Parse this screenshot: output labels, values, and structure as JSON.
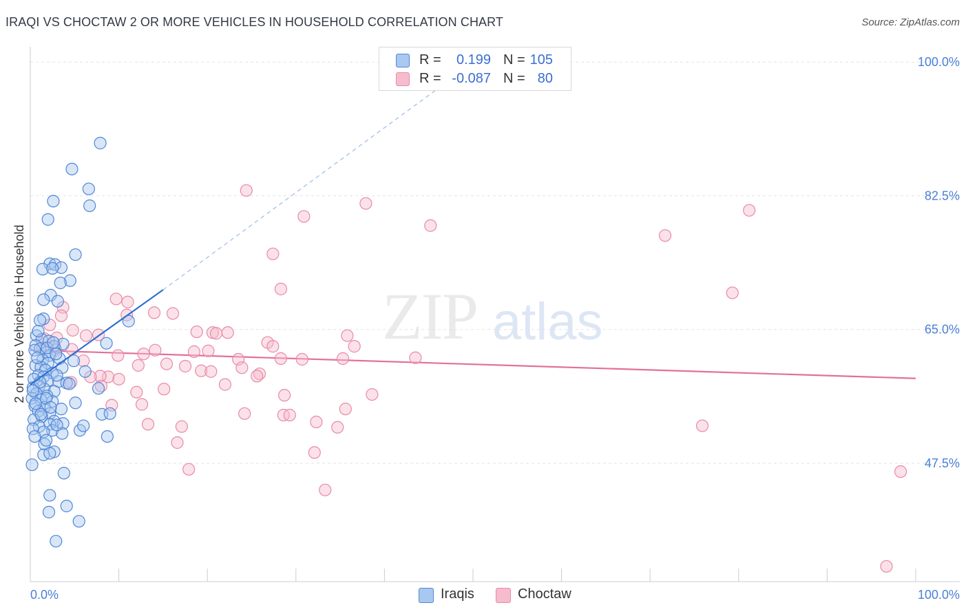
{
  "title": "IRAQI VS CHOCTAW 2 OR MORE VEHICLES IN HOUSEHOLD CORRELATION CHART",
  "source": "Source: ZipAtlas.com",
  "watermark": {
    "zip": "ZIP",
    "atlas": "atlas"
  },
  "colors": {
    "iraqi_fill": "#a9c8ef",
    "iraqi_stroke": "#4f86d6",
    "iraqi_line": "#2f6fd1",
    "choctaw_fill": "#f6bccd",
    "choctaw_stroke": "#e889a8",
    "choctaw_line": "#e2709a",
    "tick_text": "#4a7fd6",
    "grid": "#e3e3e3"
  },
  "legend": {
    "rows": [
      {
        "r_label": "R =",
        "r_value": "0.199",
        "n_label": "N =",
        "n_value": "105"
      },
      {
        "r_label": "R =",
        "r_value": "-0.087",
        "n_label": "N =",
        "n_value": "80"
      }
    ]
  },
  "bottom_legend": {
    "iraqi": "Iraqis",
    "choctaw": "Choctaw"
  },
  "chart_data": {
    "type": "scatter",
    "title": "IRAQI VS CHOCTAW 2 OR MORE VEHICLES IN HOUSEHOLD CORRELATION CHART",
    "xlabel": "",
    "ylabel": "2 or more Vehicles in Household",
    "xlim": [
      0,
      100
    ],
    "ylim": [
      32.0,
      102.0
    ],
    "x_tick_labels": {
      "min": "0.0%",
      "max": "100.0%"
    },
    "y_ticks": [
      47.5,
      65.0,
      82.5,
      100.0
    ],
    "y_tick_labels": [
      "47.5%",
      "65.0%",
      "82.5%",
      "100.0%"
    ],
    "series": [
      {
        "name": "Iraqis",
        "r": 0.199,
        "n": 105,
        "trend": {
          "x0": 0,
          "y0": 57.8,
          "x1": 15,
          "y1": 70.2,
          "dash_to_x": 46,
          "dash_to_y": 96.5
        },
        "points": [
          [
            7.9,
            89.4
          ],
          [
            4.7,
            86.0
          ],
          [
            6.6,
            83.4
          ],
          [
            2.6,
            81.8
          ],
          [
            6.7,
            81.2
          ],
          [
            2.0,
            79.4
          ],
          [
            5.1,
            74.8
          ],
          [
            2.2,
            73.6
          ],
          [
            2.8,
            73.5
          ],
          [
            1.4,
            72.9
          ],
          [
            3.5,
            73.1
          ],
          [
            2.5,
            73.0
          ],
          [
            4.5,
            71.4
          ],
          [
            3.4,
            71.1
          ],
          [
            2.3,
            69.5
          ],
          [
            1.5,
            68.9
          ],
          [
            3.1,
            68.7
          ],
          [
            11.1,
            66.1
          ],
          [
            1.5,
            66.4
          ],
          [
            1.1,
            66.2
          ],
          [
            0.7,
            64.2
          ],
          [
            1.3,
            63.7
          ],
          [
            2.1,
            63.5
          ],
          [
            8.6,
            63.2
          ],
          [
            0.6,
            62.9
          ],
          [
            3.7,
            63.1
          ],
          [
            2.7,
            62.8
          ],
          [
            1.1,
            62.5
          ],
          [
            0.5,
            62.3
          ],
          [
            1.8,
            62.0
          ],
          [
            2.2,
            61.6
          ],
          [
            3.3,
            61.2
          ],
          [
            1.4,
            61.0
          ],
          [
            4.9,
            60.9
          ],
          [
            2.0,
            60.6
          ],
          [
            0.6,
            60.3
          ],
          [
            1.2,
            60.1
          ],
          [
            3.6,
            60.0
          ],
          [
            1.7,
            59.7
          ],
          [
            2.5,
            59.3
          ],
          [
            6.2,
            59.5
          ],
          [
            0.9,
            59.0
          ],
          [
            1.5,
            58.8
          ],
          [
            0.4,
            58.5
          ],
          [
            2.0,
            58.3
          ],
          [
            3.2,
            58.2
          ],
          [
            4.1,
            58.0
          ],
          [
            1.0,
            57.6
          ],
          [
            0.3,
            57.4
          ],
          [
            1.6,
            57.2
          ],
          [
            7.7,
            57.3
          ],
          [
            2.7,
            56.9
          ],
          [
            0.7,
            56.6
          ],
          [
            1.9,
            56.3
          ],
          [
            0.2,
            56.0
          ],
          [
            1.2,
            55.8
          ],
          [
            2.5,
            55.6
          ],
          [
            5.1,
            55.4
          ],
          [
            0.5,
            55.0
          ],
          [
            1.6,
            54.8
          ],
          [
            3.5,
            54.6
          ],
          [
            0.9,
            54.3
          ],
          [
            2.2,
            54.0
          ],
          [
            1.3,
            53.6
          ],
          [
            0.4,
            53.2
          ],
          [
            2.7,
            53.0
          ],
          [
            8.1,
            53.9
          ],
          [
            9.0,
            54.0
          ],
          [
            2.2,
            52.6
          ],
          [
            3.7,
            52.7
          ],
          [
            1.0,
            52.3
          ],
          [
            0.3,
            52.0
          ],
          [
            2.5,
            51.8
          ],
          [
            5.6,
            51.8
          ],
          [
            1.5,
            51.6
          ],
          [
            3.6,
            51.4
          ],
          [
            8.7,
            51.0
          ],
          [
            1.6,
            50.0
          ],
          [
            2.7,
            49.0
          ],
          [
            1.5,
            48.6
          ],
          [
            2.2,
            48.8
          ],
          [
            0.2,
            47.3
          ],
          [
            3.8,
            46.2
          ],
          [
            2.2,
            43.3
          ],
          [
            4.1,
            41.9
          ],
          [
            2.1,
            41.1
          ],
          [
            5.5,
            39.9
          ],
          [
            2.9,
            37.3
          ],
          [
            1.9,
            62.6
          ],
          [
            2.9,
            61.8
          ],
          [
            0.8,
            61.3
          ],
          [
            3.0,
            59.0
          ],
          [
            1.1,
            58.1
          ],
          [
            0.3,
            57.0
          ],
          [
            4.4,
            57.9
          ],
          [
            1.8,
            56.0
          ],
          [
            0.6,
            55.3
          ],
          [
            2.3,
            54.8
          ],
          [
            1.2,
            53.9
          ],
          [
            3.0,
            52.5
          ],
          [
            0.5,
            51.0
          ],
          [
            1.8,
            50.5
          ],
          [
            6.0,
            52.4
          ],
          [
            0.9,
            64.8
          ],
          [
            2.6,
            63.3
          ]
        ]
      },
      {
        "name": "Choctaw",
        "r": -0.087,
        "n": 80,
        "trend": {
          "x0": 0,
          "y0": 62.3,
          "x1": 100,
          "y1": 58.6
        },
        "points": [
          [
            24.4,
            83.2
          ],
          [
            37.9,
            81.5
          ],
          [
            30.9,
            79.8
          ],
          [
            45.2,
            78.6
          ],
          [
            81.2,
            80.6
          ],
          [
            71.7,
            77.3
          ],
          [
            27.4,
            74.9
          ],
          [
            28.3,
            70.3
          ],
          [
            79.3,
            69.8
          ],
          [
            9.7,
            69.0
          ],
          [
            11.0,
            68.6
          ],
          [
            3.7,
            67.9
          ],
          [
            14.0,
            67.2
          ],
          [
            16.1,
            67.1
          ],
          [
            10.9,
            66.9
          ],
          [
            3.5,
            66.8
          ],
          [
            2.2,
            65.6
          ],
          [
            4.8,
            64.9
          ],
          [
            18.8,
            64.7
          ],
          [
            20.6,
            64.6
          ],
          [
            22.3,
            64.6
          ],
          [
            21.0,
            64.5
          ],
          [
            6.3,
            64.2
          ],
          [
            7.7,
            64.3
          ],
          [
            35.8,
            64.2
          ],
          [
            3.0,
            63.9
          ],
          [
            1.6,
            63.8
          ],
          [
            26.8,
            63.3
          ],
          [
            27.4,
            62.8
          ],
          [
            36.6,
            62.8
          ],
          [
            1.4,
            62.6
          ],
          [
            2.9,
            62.3
          ],
          [
            14.1,
            62.3
          ],
          [
            18.5,
            62.1
          ],
          [
            20.1,
            62.2
          ],
          [
            12.8,
            61.8
          ],
          [
            9.9,
            61.6
          ],
          [
            23.5,
            61.1
          ],
          [
            28.3,
            61.2
          ],
          [
            30.7,
            61.1
          ],
          [
            35.3,
            61.2
          ],
          [
            43.5,
            61.3
          ],
          [
            12.2,
            60.3
          ],
          [
            15.4,
            60.5
          ],
          [
            17.5,
            60.2
          ],
          [
            23.9,
            60.0
          ],
          [
            19.3,
            59.6
          ],
          [
            20.4,
            59.5
          ],
          [
            25.9,
            59.2
          ],
          [
            25.6,
            58.9
          ],
          [
            8.8,
            58.8
          ],
          [
            7.9,
            58.9
          ],
          [
            6.8,
            58.8
          ],
          [
            10.0,
            58.5
          ],
          [
            4.6,
            58.1
          ],
          [
            22.0,
            57.8
          ],
          [
            15.1,
            57.2
          ],
          [
            8.0,
            57.6
          ],
          [
            12.0,
            56.8
          ],
          [
            28.7,
            56.4
          ],
          [
            38.6,
            56.5
          ],
          [
            9.2,
            55.1
          ],
          [
            12.6,
            55.2
          ],
          [
            35.6,
            54.6
          ],
          [
            24.2,
            54.0
          ],
          [
            28.6,
            53.8
          ],
          [
            29.3,
            53.8
          ],
          [
            32.3,
            52.9
          ],
          [
            34.7,
            52.2
          ],
          [
            13.3,
            52.6
          ],
          [
            17.1,
            52.3
          ],
          [
            75.9,
            52.4
          ],
          [
            16.6,
            50.2
          ],
          [
            32.1,
            48.9
          ],
          [
            17.9,
            46.7
          ],
          [
            33.3,
            44.0
          ],
          [
            98.3,
            46.4
          ],
          [
            96.7,
            34.0
          ],
          [
            4.7,
            62.4
          ],
          [
            6.0,
            60.9
          ]
        ]
      }
    ]
  }
}
